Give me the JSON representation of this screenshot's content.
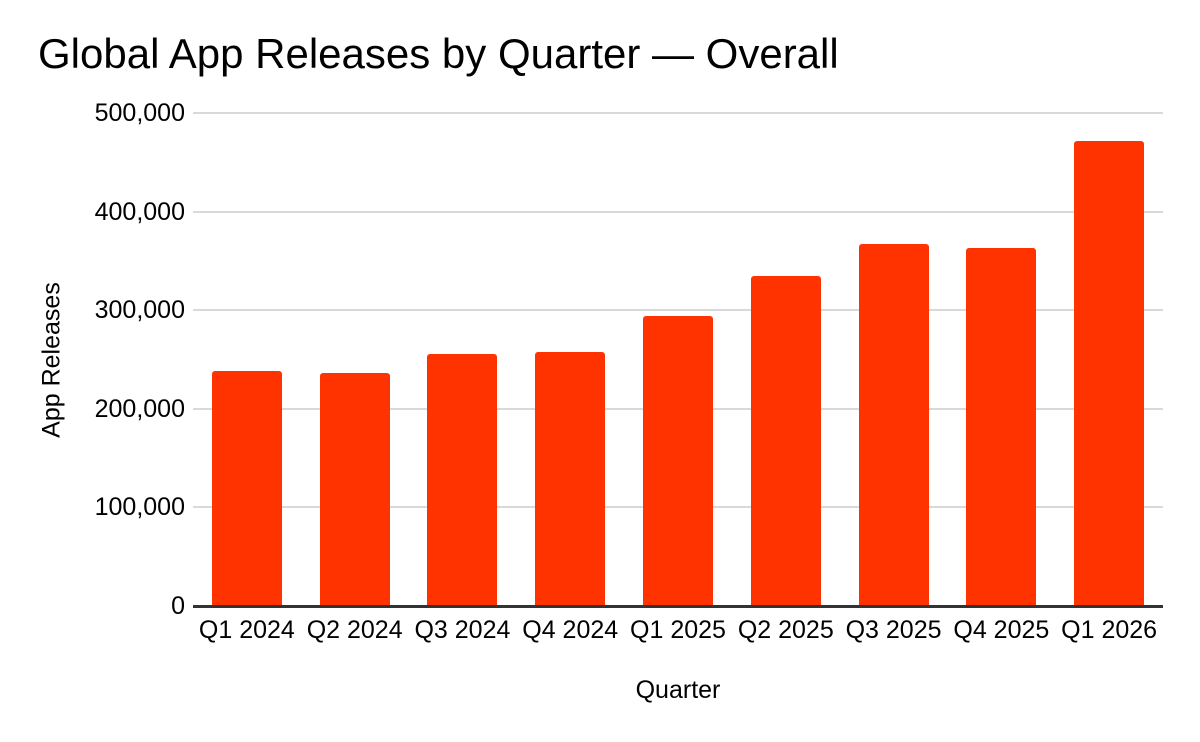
{
  "chart_data": {
    "type": "bar",
    "title": "Global App Releases by Quarter — Overall",
    "xlabel": "Quarter",
    "ylabel": "App Releases",
    "categories": [
      "Q1 2024",
      "Q2 2024",
      "Q3 2024",
      "Q4 2024",
      "Q1 2025",
      "Q2 2025",
      "Q3 2025",
      "Q4 2025",
      "Q1 2026"
    ],
    "values": [
      238000,
      236000,
      256000,
      258000,
      294000,
      335000,
      367000,
      363000,
      472000
    ],
    "ylim": [
      0,
      500000
    ],
    "yticks": [
      0,
      100000,
      200000,
      300000,
      400000,
      500000
    ],
    "ytick_labels": [
      "0",
      "100,000",
      "200,000",
      "300,000",
      "400,000",
      "500,000"
    ],
    "grid": true,
    "legend": false,
    "colors": {
      "bar": "#ff3300",
      "gridline": "#d9d9d9",
      "axis_line": "#333333",
      "text": "#000000",
      "background": "#ffffff"
    }
  }
}
